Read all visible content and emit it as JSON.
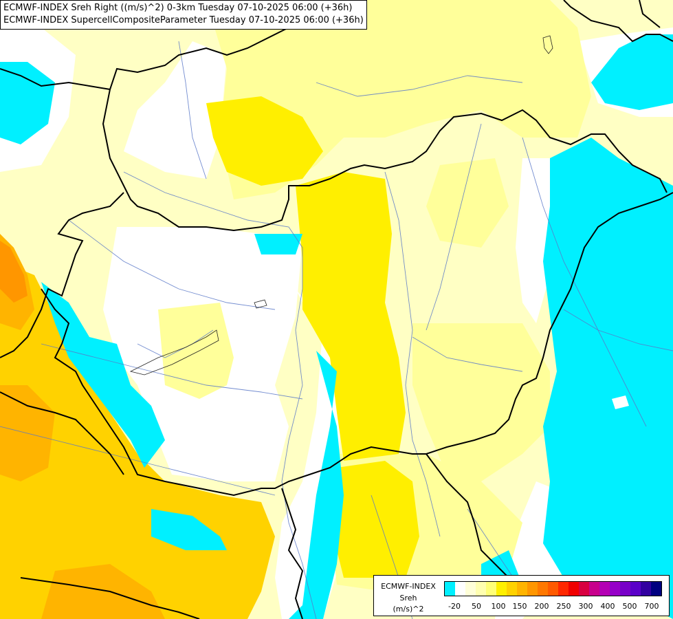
{
  "header": {
    "line1": "ECMWF-INDEX Sreh Right ((m/s)^2) 0-3km Tuesday 07-10-2025 06:00 (+36h)",
    "line2": "ECMWF-INDEX SupercellCompositeParameter Tuesday 07-10-2025 06:00 (+36h)"
  },
  "legend": {
    "title1": "ECMWF-INDEX",
    "title2": "Sreh",
    "title3": "(m/s)^2",
    "colors": [
      "#00f0ff",
      "#ffffff",
      "#ffffd8",
      "#ffffb0",
      "#ffff78",
      "#fff000",
      "#ffd200",
      "#ffb400",
      "#ff9600",
      "#ff7800",
      "#ff5a00",
      "#ff2800",
      "#f00000",
      "#d80040",
      "#c8008c",
      "#b400b4",
      "#9600c8",
      "#7800c8",
      "#5a00c8",
      "#3200a0",
      "#000080"
    ],
    "tick_labels": [
      "-20",
      "50",
      "100",
      "150",
      "200",
      "250",
      "300",
      "400",
      "500",
      "700"
    ]
  }
}
